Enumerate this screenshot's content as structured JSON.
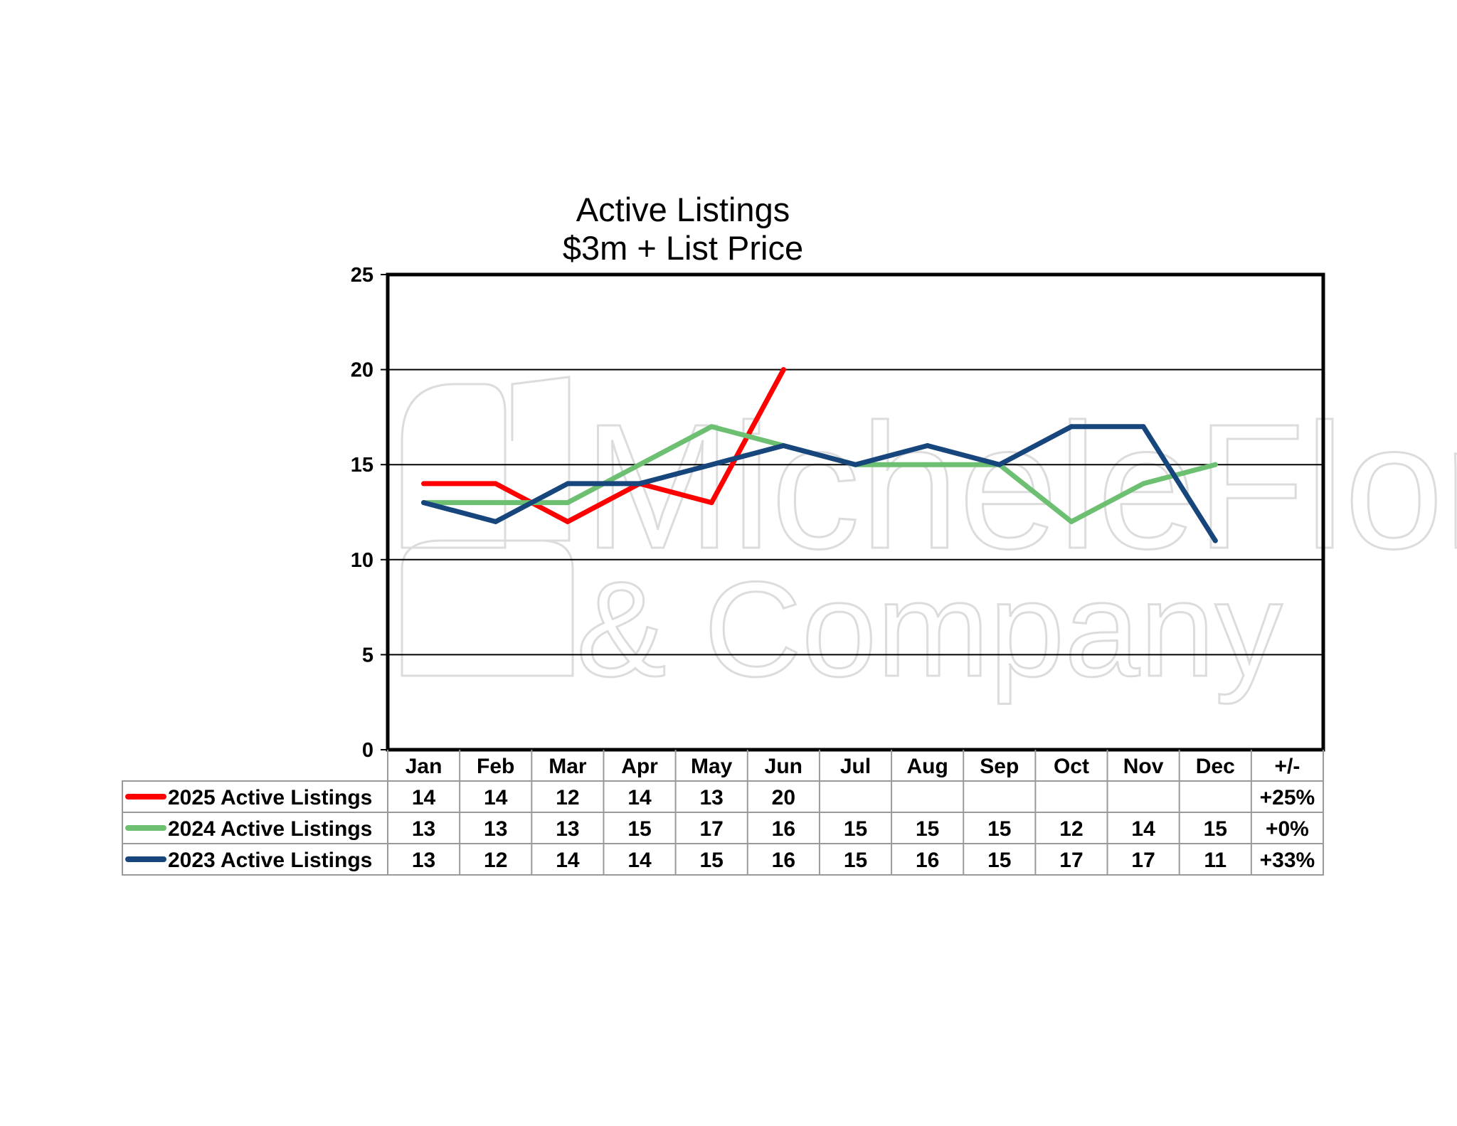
{
  "chart_data": {
    "type": "line",
    "title": "Active Listings",
    "subtitle": "$3m + List Price",
    "categories": [
      "Jan",
      "Feb",
      "Mar",
      "Apr",
      "May",
      "Jun",
      "Jul",
      "Aug",
      "Sep",
      "Oct",
      "Nov",
      "Dec"
    ],
    "change_header": "+/-",
    "ylim": [
      0,
      25
    ],
    "yticks": [
      0,
      5,
      10,
      15,
      20,
      25
    ],
    "grid": true,
    "legend": "data table below chart",
    "watermark": "MicheleFlory & Company",
    "series": [
      {
        "name": "2025 Active Listings",
        "color": "#ff0000",
        "values": [
          14,
          14,
          12,
          14,
          13,
          20,
          null,
          null,
          null,
          null,
          null,
          null
        ],
        "change": "+25%"
      },
      {
        "name": "2024 Active Listings",
        "color": "#6dbf72",
        "values": [
          13,
          13,
          13,
          15,
          17,
          16,
          15,
          15,
          15,
          12,
          14,
          15
        ],
        "change": "+0%"
      },
      {
        "name": "2023 Active Listings",
        "color": "#17467d",
        "values": [
          13,
          12,
          14,
          14,
          15,
          16,
          15,
          16,
          15,
          17,
          17,
          11
        ],
        "change": "+33%"
      }
    ]
  }
}
